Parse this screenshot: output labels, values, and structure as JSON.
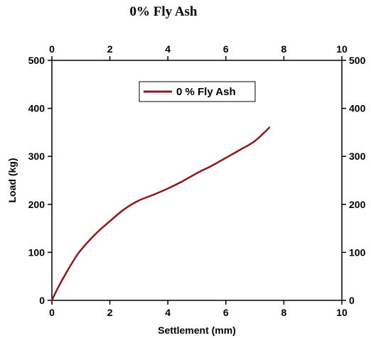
{
  "chart_data": {
    "type": "line",
    "title": "0% Fly Ash",
    "xlabel": "Settlement (mm)",
    "ylabel": "Load (kg)",
    "xlim": [
      0,
      10
    ],
    "ylim": [
      0,
      500
    ],
    "x_ticks": [
      "0",
      "2",
      "4",
      "6",
      "8",
      "10"
    ],
    "y_ticks": [
      "0",
      "100",
      "200",
      "300",
      "400",
      "500"
    ],
    "top_axis_ticks": [
      "0",
      "2",
      "4",
      "6",
      "8",
      "10"
    ],
    "right_axis_ticks": [
      "0",
      "100",
      "200",
      "300",
      "400",
      "500"
    ],
    "grid": false,
    "legend_position": "top-center",
    "series": [
      {
        "name": "0 % Fly Ash",
        "color": "#8b1a1a",
        "x": [
          0,
          0.2,
          0.5,
          0.8,
          1.0,
          1.5,
          2.0,
          2.5,
          3.0,
          3.5,
          4.0,
          4.5,
          5.0,
          5.5,
          6.0,
          6.5,
          7.0,
          7.5
        ],
        "y": [
          0,
          25,
          58,
          88,
          105,
          138,
          165,
          190,
          208,
          220,
          233,
          248,
          265,
          280,
          297,
          314,
          332,
          360
        ]
      }
    ]
  }
}
